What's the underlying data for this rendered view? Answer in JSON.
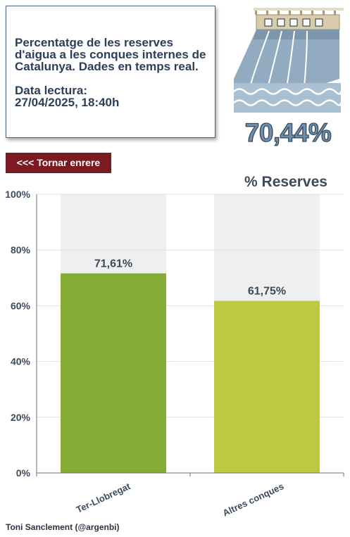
{
  "info": {
    "description": "Percentatge de les reserves d'aigua a les conques internes de Catalunya. Dades en temps real.",
    "reading_label": "Data lectura:",
    "reading_date": "27/04/2025, 18:40h"
  },
  "total_percentage": "70,44%",
  "back_button": "<<< Tornar enrere",
  "credit": "Toni Sanclement (@argenbi)",
  "colors": {
    "button": "#7c1a21",
    "bar_ter_llobregat": "#85ad35",
    "bar_altres": "#bdc942",
    "bar_track": "#efefef"
  },
  "chart_data": {
    "type": "bar",
    "title": "% Reserves",
    "categories": [
      "Ter-Llobregat",
      "Altres conques"
    ],
    "values": [
      71.61,
      61.75
    ],
    "labels": [
      "71,61%",
      "61,75%"
    ],
    "ylim": [
      0,
      100
    ],
    "yticks": [
      "0%",
      "20%",
      "40%",
      "60%",
      "80%",
      "100%"
    ],
    "grid": true
  }
}
